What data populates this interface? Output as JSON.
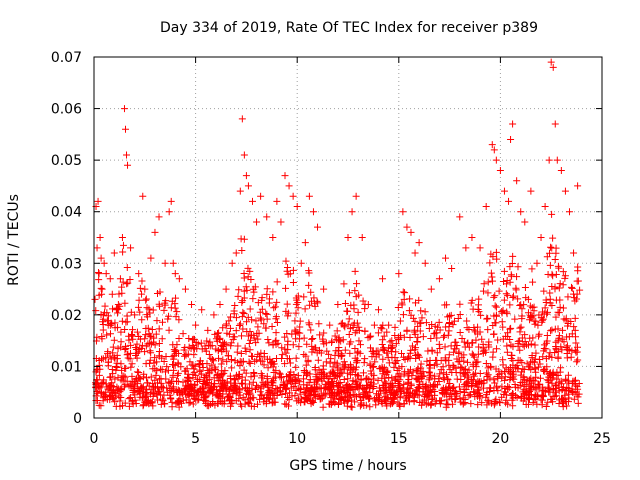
{
  "chart_data": {
    "type": "scatter",
    "title": "Day 334 of 2019, Rate Of TEC Index for receiver p389",
    "xlabel": "GPS time / hours",
    "ylabel": "ROTI / TECUs",
    "xlim": [
      0,
      25
    ],
    "ylim": [
      0,
      0.07
    ],
    "xticks": [
      "0",
      "5",
      "10",
      "15",
      "20",
      "25"
    ],
    "yticks": [
      "0",
      "0.01",
      "0.02",
      "0.03",
      "0.04",
      "0.05",
      "0.06",
      "0.07"
    ],
    "grid": true,
    "marker": "+",
    "series": [
      {
        "name": "ROTI",
        "color": "#ff0000",
        "x": [
          0.05,
          0.1,
          0.15,
          0.2,
          0.25,
          0.3,
          0.35,
          0.4,
          0.5,
          0.6,
          0.7,
          0.8,
          0.9,
          1.0,
          1.1,
          1.2,
          1.3,
          1.4,
          1.5,
          1.55,
          1.6,
          1.65,
          1.8,
          2.0,
          2.2,
          2.4,
          2.5,
          2.8,
          3.0,
          3.2,
          3.5,
          3.7,
          3.8,
          3.9,
          4.0,
          4.2,
          4.5,
          4.8,
          5.0,
          5.3,
          5.6,
          5.9,
          6.2,
          6.5,
          6.8,
          7.0,
          7.2,
          7.3,
          7.4,
          7.5,
          7.6,
          7.8,
          8.0,
          8.2,
          8.5,
          8.8,
          9.0,
          9.2,
          9.4,
          9.6,
          9.8,
          10.0,
          10.2,
          10.4,
          10.6,
          10.8,
          11.0,
          11.3,
          11.6,
          12.0,
          12.3,
          12.5,
          12.7,
          12.9,
          13.2,
          13.5,
          13.8,
          14.0,
          14.2,
          14.5,
          14.8,
          15.0,
          15.2,
          15.4,
          15.6,
          15.8,
          16.0,
          16.3,
          16.6,
          17.0,
          17.3,
          17.6,
          18.0,
          18.3,
          18.6,
          19.0,
          19.3,
          19.6,
          19.7,
          19.8,
          20.0,
          20.2,
          20.4,
          20.5,
          20.6,
          20.8,
          21.0,
          21.2,
          21.5,
          21.8,
          22.0,
          22.2,
          22.4,
          22.5,
          22.6,
          22.7,
          22.8,
          23.0,
          23.2,
          23.4,
          23.6,
          23.8
        ],
        "y": [
          0.023,
          0.041,
          0.033,
          0.042,
          0.028,
          0.035,
          0.031,
          0.025,
          0.03,
          0.028,
          0.018,
          0.027,
          0.024,
          0.032,
          0.021,
          0.022,
          0.027,
          0.035,
          0.06,
          0.056,
          0.051,
          0.049,
          0.033,
          0.02,
          0.028,
          0.043,
          0.025,
          0.031,
          0.036,
          0.039,
          0.03,
          0.04,
          0.042,
          0.03,
          0.028,
          0.027,
          0.025,
          0.022,
          0.018,
          0.021,
          0.017,
          0.02,
          0.022,
          0.025,
          0.03,
          0.032,
          0.044,
          0.058,
          0.051,
          0.047,
          0.045,
          0.042,
          0.038,
          0.043,
          0.039,
          0.035,
          0.042,
          0.038,
          0.047,
          0.045,
          0.043,
          0.041,
          0.03,
          0.034,
          0.043,
          0.04,
          0.037,
          0.025,
          0.018,
          0.022,
          0.026,
          0.035,
          0.04,
          0.043,
          0.035,
          0.022,
          0.018,
          0.021,
          0.027,
          0.018,
          0.016,
          0.028,
          0.04,
          0.037,
          0.036,
          0.032,
          0.034,
          0.03,
          0.025,
          0.027,
          0.031,
          0.029,
          0.039,
          0.033,
          0.035,
          0.033,
          0.041,
          0.053,
          0.052,
          0.05,
          0.048,
          0.044,
          0.042,
          0.054,
          0.057,
          0.046,
          0.04,
          0.038,
          0.044,
          0.03,
          0.035,
          0.041,
          0.05,
          0.069,
          0.068,
          0.057,
          0.05,
          0.048,
          0.044,
          0.04,
          0.032,
          0.045
        ]
      }
    ]
  }
}
